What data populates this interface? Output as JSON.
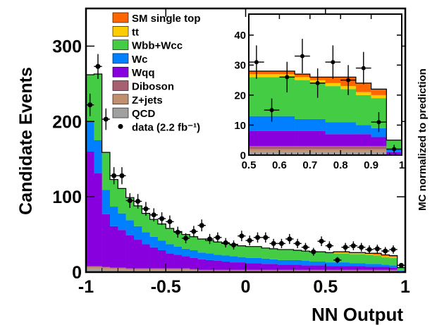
{
  "chart_data": [
    {
      "type": "histogram-stacked",
      "xlabel": "NN Output",
      "ylabel": "Candidate Events",
      "right_label": "MC normalized to prediction",
      "xlim": [
        -1,
        1
      ],
      "ylim": [
        0,
        350
      ],
      "x_ticks": [
        "-1",
        "-0.5",
        "0",
        "0.5",
        "1"
      ],
      "x_tick_values": [
        -1,
        -0.5,
        0,
        0.5,
        1
      ],
      "y_ticks": [
        "0",
        "100",
        "200",
        "300"
      ],
      "y_tick_values": [
        0,
        100,
        200,
        300
      ],
      "bin_edges": [
        -1,
        -0.95,
        -0.9,
        -0.85,
        -0.8,
        -0.75,
        -0.7,
        -0.65,
        -0.6,
        -0.55,
        -0.5,
        -0.45,
        -0.4,
        -0.35,
        -0.3,
        -0.25,
        -0.2,
        -0.15,
        -0.1,
        -0.05,
        0,
        0.05,
        0.1,
        0.15,
        0.2,
        0.25,
        0.3,
        0.35,
        0.4,
        0.45,
        0.5,
        0.55,
        0.6,
        0.65,
        0.7,
        0.75,
        0.8,
        0.85,
        0.9,
        0.95,
        1
      ],
      "series": [
        {
          "name": "QCD",
          "color": "#a0a0a0",
          "values": [
            4,
            4,
            3,
            3,
            3,
            2,
            2,
            2,
            2,
            2,
            2,
            2,
            2,
            2,
            1,
            1,
            1,
            1,
            1,
            1,
            1,
            1,
            1,
            1,
            1,
            1,
            1,
            1,
            1,
            1,
            1,
            1,
            1,
            1,
            1,
            1,
            1,
            1,
            1,
            0
          ]
        },
        {
          "name": "Z+jets",
          "color": "#c09070",
          "values": [
            3,
            3,
            3,
            2,
            2,
            2,
            2,
            2,
            2,
            2,
            2,
            2,
            2,
            1,
            1,
            1,
            1,
            1,
            1,
            1,
            1,
            1,
            1,
            1,
            1,
            1,
            1,
            1,
            1,
            1,
            1,
            1,
            1,
            1,
            1,
            1,
            1,
            1,
            1,
            0
          ]
        },
        {
          "name": "Diboson",
          "color": "#a86070",
          "values": [
            1,
            1,
            1,
            1,
            1,
            1,
            1,
            1,
            1,
            1,
            1,
            1,
            1,
            1,
            1,
            1,
            1,
            1,
            1,
            1,
            1,
            1,
            1,
            1,
            1,
            1,
            1,
            1,
            1,
            1,
            1,
            1,
            1,
            1,
            1,
            1,
            1,
            1,
            1,
            0
          ]
        },
        {
          "name": "Wqq",
          "color": "#8800dd",
          "values": [
            152,
            123,
            70,
            55,
            50,
            44,
            38,
            32,
            28,
            24,
            20,
            18,
            16,
            15,
            14,
            13,
            12,
            11,
            10,
            10,
            9,
            9,
            8,
            8,
            7,
            7,
            7,
            6,
            6,
            6,
            5,
            5,
            5,
            5,
            5,
            4,
            4,
            4,
            3,
            1
          ]
        },
        {
          "name": "Wc",
          "color": "#0080ff",
          "values": [
            40,
            44,
            32,
            26,
            22,
            20,
            18,
            16,
            14,
            13,
            12,
            11,
            10,
            10,
            9,
            9,
            8,
            8,
            8,
            7,
            7,
            7,
            7,
            6,
            6,
            6,
            6,
            6,
            5,
            5,
            5,
            5,
            5,
            4,
            4,
            4,
            4,
            3,
            3,
            1
          ]
        },
        {
          "name": "Wbb+Wcc",
          "color": "#44cc44",
          "values": [
            62,
            88,
            50,
            36,
            33,
            30,
            27,
            25,
            23,
            22,
            21,
            20,
            19,
            18,
            18,
            17,
            17,
            16,
            16,
            15,
            15,
            15,
            14,
            14,
            14,
            14,
            13,
            13,
            13,
            13,
            13,
            12,
            12,
            12,
            12,
            12,
            11,
            10,
            10,
            4
          ]
        },
        {
          "name": "tt",
          "color": "#ffcc00",
          "values": [
            0,
            0,
            0,
            0,
            0,
            0,
            0,
            0,
            0,
            0,
            0,
            0,
            0,
            0,
            0,
            0,
            0,
            0,
            0,
            0,
            0,
            0,
            0,
            0,
            0,
            0,
            0,
            0,
            0,
            0,
            0,
            1,
            1,
            1,
            1,
            1,
            1,
            1,
            1,
            0
          ]
        },
        {
          "name": "SM single top",
          "color": "#ff6600",
          "values": [
            0,
            0,
            0,
            0,
            0,
            0,
            0,
            0,
            0,
            0,
            0,
            0,
            0,
            0,
            0,
            0,
            0,
            0,
            0,
            0,
            0,
            0,
            0,
            0,
            0,
            0,
            0,
            0,
            0,
            0,
            0,
            1,
            1,
            1,
            1,
            1,
            2,
            2,
            2,
            0
          ]
        }
      ],
      "data": {
        "name": "data (2.2 fb⁻¹)",
        "x": [
          -0.975,
          -0.925,
          -0.875,
          -0.825,
          -0.775,
          -0.725,
          -0.675,
          -0.625,
          -0.575,
          -0.525,
          -0.475,
          -0.425,
          -0.375,
          -0.325,
          -0.275,
          -0.225,
          -0.175,
          -0.125,
          -0.075,
          -0.025,
          0.025,
          0.075,
          0.125,
          0.175,
          0.225,
          0.275,
          0.325,
          0.375,
          0.425,
          0.475,
          0.525,
          0.575,
          0.625,
          0.675,
          0.725,
          0.775,
          0.825,
          0.875,
          0.925,
          0.975
        ],
        "y": [
          222,
          273,
          203,
          128,
          128,
          95,
          94,
          84,
          76,
          71,
          67,
          53,
          45,
          54,
          62,
          44,
          46,
          39,
          36,
          48,
          42,
          46,
          46,
          38,
          38,
          44,
          38,
          33,
          27,
          41,
          35,
          16,
          33,
          35,
          33,
          30,
          31,
          28,
          30,
          9
        ]
      },
      "legend_position": "top-center"
    },
    {
      "type": "histogram-stacked",
      "role": "inset",
      "xlim": [
        0.5,
        1
      ],
      "ylim": [
        0,
        47
      ],
      "x_ticks": [
        "0.5",
        "0.6",
        "0.7",
        "0.8",
        "0.9",
        "1"
      ],
      "x_tick_values": [
        0.5,
        0.6,
        0.7,
        0.8,
        0.9,
        1
      ],
      "y_ticks": [
        "0",
        "10",
        "20",
        "30",
        "40"
      ],
      "y_tick_values": [
        0,
        10,
        20,
        30,
        40
      ],
      "bin_edges": [
        0.5,
        0.55,
        0.6,
        0.65,
        0.7,
        0.75,
        0.8,
        0.85,
        0.9,
        0.95,
        1
      ],
      "series": [
        {
          "name": "QCD",
          "color": "#a0a0a0",
          "values": [
            1,
            1,
            1,
            1,
            1,
            1,
            1,
            1,
            1,
            0
          ]
        },
        {
          "name": "Z+jets",
          "color": "#c09070",
          "values": [
            1,
            1,
            1,
            1,
            1,
            1,
            1,
            1,
            1,
            0
          ]
        },
        {
          "name": "Diboson",
          "color": "#a86070",
          "values": [
            1,
            1,
            1,
            1,
            1,
            1,
            1,
            1,
            1,
            0
          ]
        },
        {
          "name": "Wqq",
          "color": "#8800dd",
          "values": [
            5,
            5,
            5,
            5,
            5,
            4,
            4,
            4,
            3,
            1
          ]
        },
        {
          "name": "Wc",
          "color": "#0080ff",
          "values": [
            5,
            5,
            5,
            4,
            4,
            4,
            4,
            3,
            3,
            1
          ]
        },
        {
          "name": "Wbb+Wcc",
          "color": "#44cc44",
          "values": [
            13,
            13,
            13,
            13,
            12,
            12,
            11,
            10,
            10,
            3
          ]
        },
        {
          "name": "tt",
          "color": "#ffcc00",
          "values": [
            1,
            1,
            1,
            1,
            1,
            1,
            1,
            1,
            1,
            0
          ]
        },
        {
          "name": "SM single top",
          "color": "#ff6600",
          "values": [
            1,
            1,
            1,
            1,
            1,
            2,
            3,
            3,
            2,
            0
          ]
        }
      ],
      "data": {
        "x": [
          0.525,
          0.575,
          0.625,
          0.675,
          0.725,
          0.775,
          0.825,
          0.875,
          0.925,
          0.975
        ],
        "y": [
          31,
          15,
          26,
          33,
          24,
          31,
          25,
          29,
          11,
          2
        ]
      }
    }
  ]
}
